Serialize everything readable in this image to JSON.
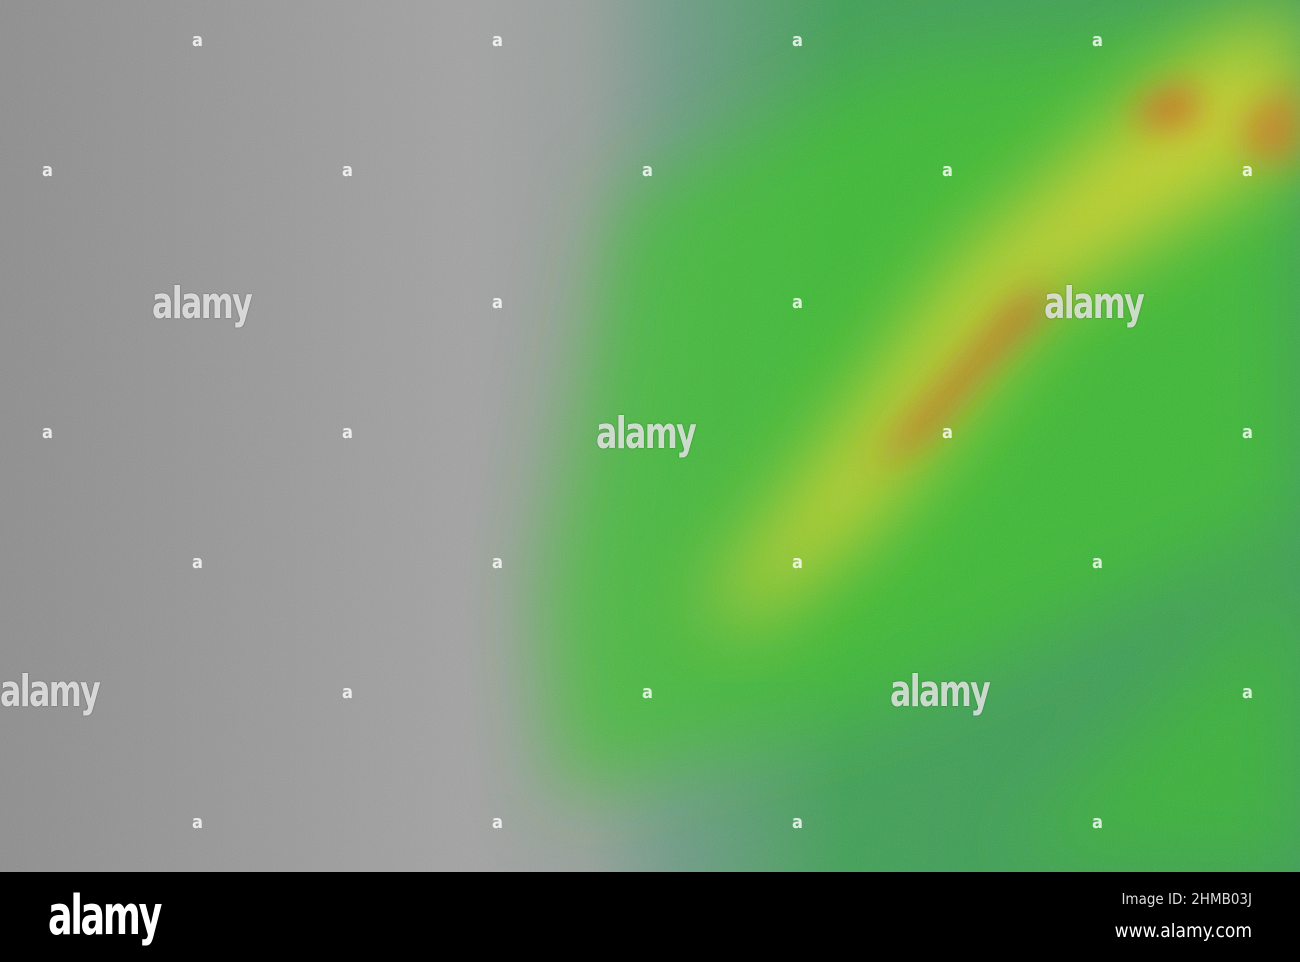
{
  "map": {
    "type": "shaded-relief elevation map",
    "colors": {
      "lowland": "#9a9a9a",
      "low": "#5f9a7f",
      "mid": "#2fbf2a",
      "high": "#e8d92a",
      "peak": "#d8331c"
    }
  },
  "watermark": {
    "text": "alamy",
    "glyph": "a"
  },
  "footer": {
    "logo": "alamy",
    "image_id": "Image ID: 2HMB03J",
    "url": "www.alamy.com"
  }
}
